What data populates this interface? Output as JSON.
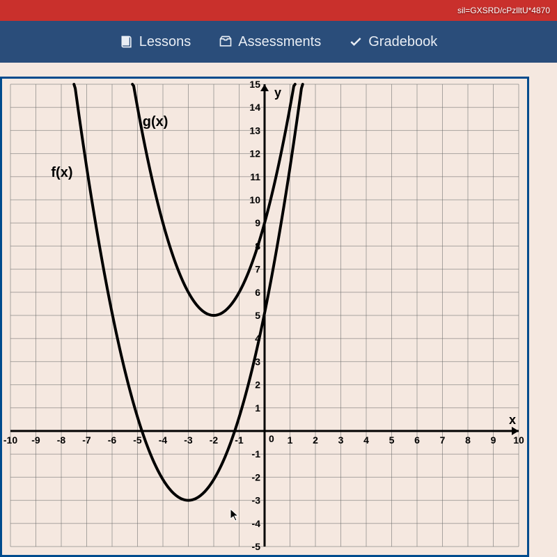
{
  "topbar": {
    "text": "sil=GXSRD/cPzlltU*4870"
  },
  "nav": {
    "lessons": {
      "label": "Lessons"
    },
    "assessments": {
      "label": "Assessments"
    },
    "gradebook": {
      "label": "Gradebook"
    }
  },
  "chart": {
    "type": "line",
    "background": "#f5e8e0",
    "border_color": "#004b8d",
    "grid_color": "#6b6b6b",
    "axis_color": "#000000",
    "curve_color": "#000000",
    "curve_width": 4,
    "label_fontsize": 16,
    "tick_fontsize": 14,
    "x": {
      "min": -10,
      "max": 10,
      "step": 1,
      "label": "x"
    },
    "y": {
      "min": -5,
      "max": 15,
      "step": 1,
      "label": "y"
    },
    "series": [
      {
        "name": "f(x)",
        "label_pos": {
          "x": -8.4,
          "y": 11
        },
        "vertex": {
          "x": -3,
          "y": -3
        },
        "a": 0.9,
        "points": [
          {
            "x": -7.6,
            "y": 15
          },
          {
            "x": -7,
            "y": 11.4
          },
          {
            "x": -6,
            "y": 5.1
          },
          {
            "x": -5,
            "y": 0.6
          },
          {
            "x": -4,
            "y": -2.1
          },
          {
            "x": -3,
            "y": -3
          },
          {
            "x": -2,
            "y": -2.1
          },
          {
            "x": -1,
            "y": 0.6
          },
          {
            "x": 0,
            "y": 5.1
          },
          {
            "x": 1,
            "y": 11.4
          },
          {
            "x": 1.5,
            "y": 15
          }
        ]
      },
      {
        "name": "g(x)",
        "label_pos": {
          "x": -4.8,
          "y": 13.2
        },
        "vertex": {
          "x": -2,
          "y": 5
        },
        "a": 1.0,
        "points": [
          {
            "x": -5.2,
            "y": 15
          },
          {
            "x": -5,
            "y": 14
          },
          {
            "x": -4,
            "y": 9
          },
          {
            "x": -3,
            "y": 6
          },
          {
            "x": -2,
            "y": 5
          },
          {
            "x": -1,
            "y": 6
          },
          {
            "x": 0,
            "y": 9
          },
          {
            "x": 1,
            "y": 14
          },
          {
            "x": 1.2,
            "y": 15
          }
        ]
      }
    ]
  }
}
